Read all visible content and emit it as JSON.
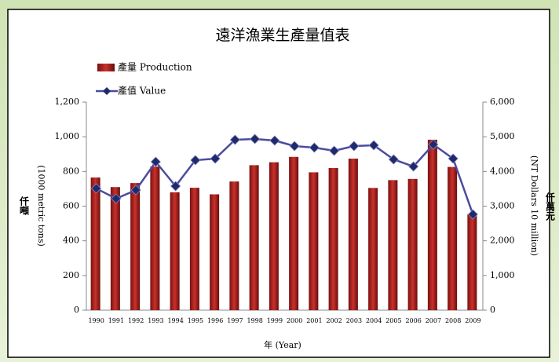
{
  "chart_data": {
    "type": "bar-line",
    "title": "遠洋漁業生產量值表",
    "x_label": "年 (Year)",
    "y_label_unit": "仟噸",
    "y_label": "(1000 metric tons)",
    "y2_label_unit": "仟萬元",
    "y2_label": "(NT Dollars 10 million)",
    "categories": [
      "1990",
      "1991",
      "1992",
      "1993",
      "1994",
      "1995",
      "1996",
      "1997",
      "1998",
      "1999",
      "2000",
      "2001",
      "2002",
      "2003",
      "2004",
      "2005",
      "2006",
      "2007",
      "2008",
      "2009"
    ],
    "series": [
      {
        "name": "產量 Production",
        "type": "bar",
        "color": "#b22222",
        "values": [
          765,
          710,
          733,
          828,
          680,
          706,
          668,
          742,
          836,
          853,
          884,
          795,
          820,
          874,
          705,
          750,
          757,
          983,
          826,
          553
        ]
      },
      {
        "name": "產值  Value",
        "type": "line",
        "axis": "y2",
        "color": "#4b4ba0",
        "values": [
          3510,
          3215,
          3464,
          4279,
          3577,
          4325,
          4370,
          4913,
          4936,
          4890,
          4732,
          4687,
          4596,
          4732,
          4755,
          4347,
          4143,
          4777,
          4370,
          2762
        ]
      }
    ],
    "ylim": [
      0,
      1200
    ],
    "yticks": [
      0,
      200,
      400,
      600,
      800,
      {
        "value": 1000,
        "label": "1,000"
      },
      {
        "value": 1200,
        "label": "1,200"
      }
    ],
    "y2lim": [
      0,
      6000
    ],
    "y2ticks": [
      0,
      {
        "value": 1000,
        "label": "1,000"
      },
      {
        "value": 2000,
        "label": "2,000"
      },
      {
        "value": 3000,
        "label": "3,000"
      },
      {
        "value": 4000,
        "label": "4,000"
      },
      {
        "value": 5000,
        "label": "5,000"
      },
      {
        "value": 6000,
        "label": "6,000"
      }
    ]
  }
}
